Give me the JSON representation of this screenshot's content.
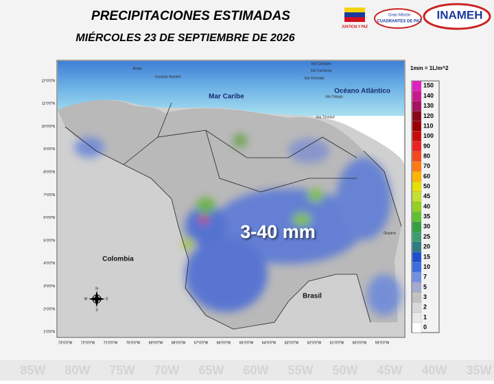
{
  "header": {
    "title": "PRECIPITACIONES ESTIMADAS",
    "date": "MIÉRCOLES 23 DE SEPTIEMBRE DE 2026",
    "logos": [
      "JUSTICIA Y PAZ",
      "Gran Misión",
      "CUADRANTES DE PAZ",
      "INAMEH"
    ]
  },
  "map": {
    "unit_note": "1mm = 1L/m^2",
    "annotation": "3-40 mm",
    "labels": [
      "Aruba",
      "Curazao",
      "Bonaire",
      "Isla Canouan",
      "Isla Carriacou",
      "Isla Grenada",
      "Isla Tobago",
      "Isla Trinidad",
      "Mar Caribe",
      "Océano Atlántico",
      "Colombia",
      "Brasil",
      "Guyana"
    ],
    "lat_ticks": [
      "12°0'0\"N",
      "11°0'0\"N",
      "10°0'0\"N",
      "9°0'0\"N",
      "8°0'0\"N",
      "7°0'0\"N",
      "6°0'0\"N",
      "5°0'0\"N",
      "4°0'0\"N",
      "3°0'0\"N",
      "2°0'0\"N",
      "1°0'0\"N"
    ],
    "lon_ticks": [
      "73°0'0\"W",
      "72°0'0\"W",
      "71°0'0\"W",
      "70°0'0\"W",
      "69°0'0\"W",
      "68°0'0\"W",
      "67°0'0\"W",
      "66°0'0\"W",
      "65°0'0\"W",
      "64°0'0\"W",
      "63°0'0\"W",
      "62°0'0\"W",
      "61°0'0\"W",
      "60°0'0\"W",
      "59°0'0\"W"
    ],
    "compass": [
      "N",
      "S",
      "E",
      "W"
    ]
  },
  "legend": {
    "values": [
      150,
      140,
      130,
      120,
      110,
      100,
      90,
      80,
      70,
      60,
      50,
      45,
      40,
      35,
      30,
      25,
      20,
      15,
      10,
      7,
      5,
      3,
      2,
      1,
      0
    ],
    "colors": [
      "#e020c0",
      "#c81890",
      "#a81060",
      "#880818",
      "#9a0000",
      "#c80c0c",
      "#ee2020",
      "#f24a1c",
      "#ff7a10",
      "#ffb400",
      "#e6e000",
      "#c4e030",
      "#94d020",
      "#62c030",
      "#34a040",
      "#3c9e70",
      "#2c7c82",
      "#1e4ed0",
      "#3c6ce0",
      "#7090e0",
      "#a4aad0",
      "#c2c2c2",
      "#d8d8d8",
      "#e9e9e9",
      "#ffffff"
    ]
  },
  "background_labels": [
    "85W",
    "80W",
    "75W",
    "70W",
    "65W",
    "60W",
    "55W",
    "50W",
    "45W",
    "40W",
    "35W"
  ]
}
